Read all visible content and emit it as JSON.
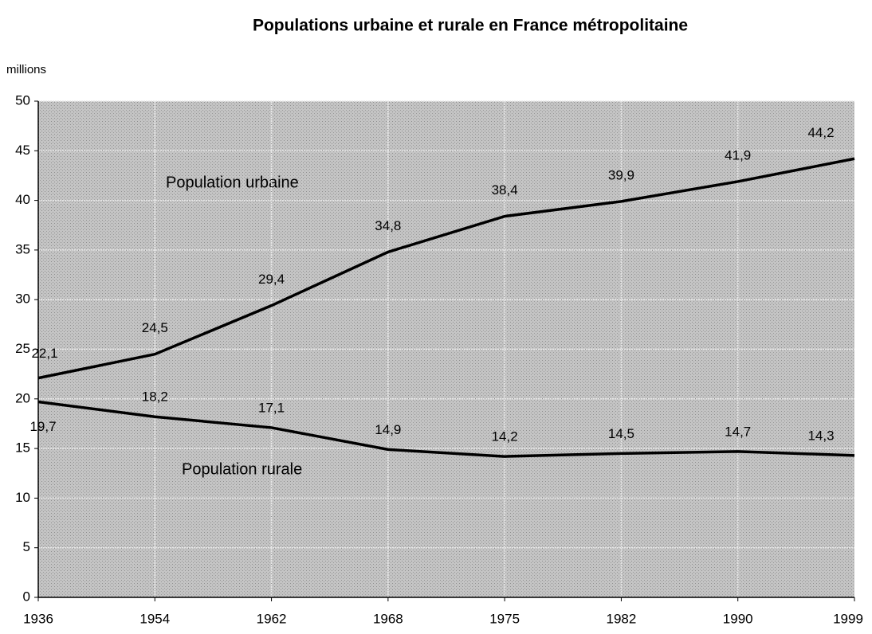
{
  "chart_data": {
    "type": "line",
    "title": "Populations urbaine et rurale en France métropolitaine",
    "y_label": "millions",
    "categories": [
      "1936",
      "1954",
      "1962",
      "1968",
      "1975",
      "1982",
      "1990",
      "1999"
    ],
    "series": [
      {
        "name": "Population urbaine",
        "color": "#000000",
        "values": [
          22.1,
          24.5,
          29.4,
          34.8,
          38.4,
          39.9,
          41.9,
          44.2
        ],
        "value_labels": [
          "22,1",
          "24,5",
          "29,4",
          "34,8",
          "38,4",
          "39,9",
          "41,9",
          "44,2"
        ]
      },
      {
        "name": "Population rurale",
        "color": "#000000",
        "values": [
          19.7,
          18.2,
          17.1,
          14.9,
          14.2,
          14.5,
          14.7,
          14.3
        ],
        "value_labels": [
          "19,7",
          "18,2",
          "17,1",
          "14,9",
          "14,2",
          "14,5",
          "14,7",
          "14,3"
        ]
      }
    ],
    "ylim": [
      0,
      50
    ],
    "yticks": [
      0,
      5,
      10,
      15,
      20,
      25,
      30,
      35,
      40,
      45,
      50
    ],
    "grid": true
  }
}
